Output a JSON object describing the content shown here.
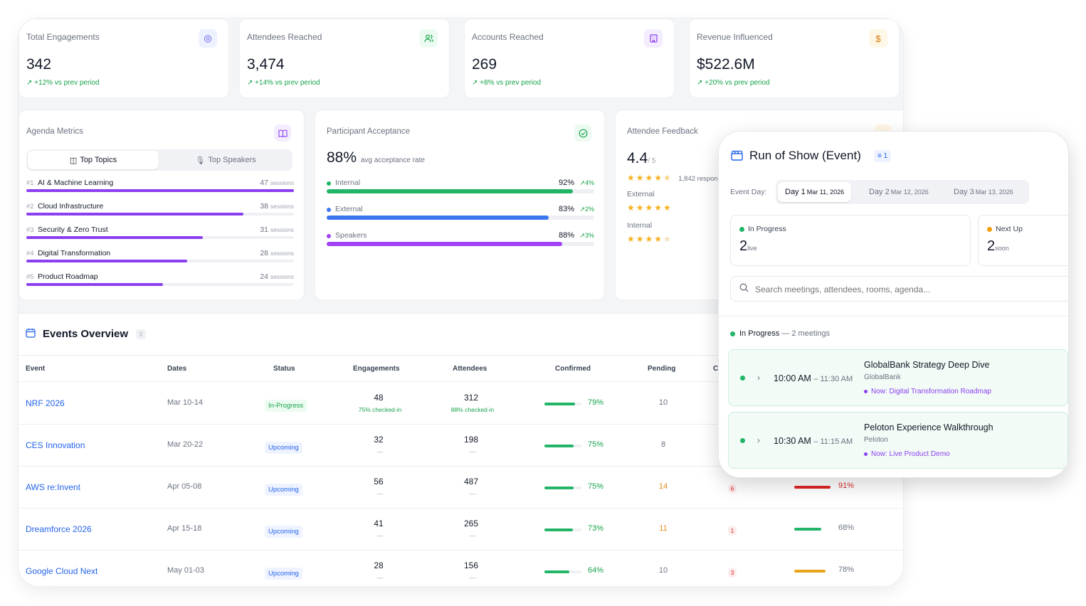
{
  "kpis": [
    {
      "label": "Total Engagements",
      "value": "342",
      "delta": "+12% vs prev period",
      "icon": "target-icon",
      "color": "#4f46e5",
      "bg": "#eef2ff"
    },
    {
      "label": "Attendees Reached",
      "value": "3,474",
      "delta": "+14% vs prev period",
      "icon": "users-icon",
      "color": "#16a34a",
      "bg": "#ecfbf1"
    },
    {
      "label": "Accounts Reached",
      "value": "269",
      "delta": "+8% vs prev period",
      "icon": "building-icon",
      "color": "#8b3ff0",
      "bg": "#f4edff"
    },
    {
      "label": "Revenue Influenced",
      "value": "$522.6M",
      "delta": "+20% vs prev period",
      "icon": "dollar-icon",
      "color": "#d97706",
      "bg": "#fff7e6"
    }
  ],
  "agenda": {
    "title": "Agenda Metrics",
    "tab_topics": "Top Topics",
    "tab_speakers": "Top Speakers",
    "sessions_suffix": "sessions",
    "topics": [
      {
        "rank": "#1",
        "name": "AI & Machine Learning",
        "count": "47",
        "pct": 1.0
      },
      {
        "rank": "#2",
        "name": "Cloud Infrastructure",
        "count": "38",
        "pct": 0.81
      },
      {
        "rank": "#3",
        "name": "Security & Zero Trust",
        "count": "31",
        "pct": 0.66
      },
      {
        "rank": "#4",
        "name": "Digital Transformation",
        "count": "28",
        "pct": 0.6
      },
      {
        "rank": "#5",
        "name": "Product Roadmap",
        "count": "24",
        "pct": 0.51
      }
    ]
  },
  "acceptance": {
    "title": "Participant Acceptance",
    "value": "88%",
    "caption": "avg acceptance rate",
    "rows": [
      {
        "name": "Internal",
        "pct": "92%",
        "trend": "4%",
        "fill": 0.92,
        "color": "#22b567"
      },
      {
        "name": "External",
        "pct": "83%",
        "trend": "2%",
        "fill": 0.83,
        "color": "#3b76ef"
      },
      {
        "name": "Speakers",
        "pct": "88%",
        "trend": "3%",
        "fill": 0.88,
        "color": "#a142f4"
      }
    ]
  },
  "feedback": {
    "title": "Attendee Feedback",
    "value": "4.4",
    "scale": "/ 5",
    "responses": "1,842 responses",
    "rating": 4.4,
    "external_label": "External",
    "external_rating": 4.6,
    "internal_label": "Internal",
    "internal_rating": 4.3
  },
  "events": {
    "title": "Events Overview",
    "columns": [
      "Event",
      "Dates",
      "Status",
      "Engagements",
      "Attendees",
      "Confirmed",
      "Pending",
      "C"
    ],
    "rows": [
      {
        "name": "NRF 2026",
        "dates": "Mar 10-14",
        "status": "In-Progress",
        "engagements": "48",
        "eng_sub": "75% checked-in",
        "attendees": "312",
        "att_sub": "88% checked-in",
        "confirmed": "79%",
        "confirmed_frac": 0.79,
        "pending": "10",
        "pending_color": "#6b7280",
        "cancelled": "",
        "rate": "",
        "rate_frac": 0,
        "rate_color": "#22b567"
      },
      {
        "name": "CES Innovation",
        "dates": "Mar 20-22",
        "status": "Upcoming",
        "engagements": "32",
        "eng_sub": "—",
        "attendees": "198",
        "att_sub": "—",
        "confirmed": "75%",
        "confirmed_frac": 0.75,
        "pending": "8",
        "pending_color": "#6b7280",
        "cancelled": "",
        "rate": "",
        "rate_frac": 0,
        "rate_color": "#22b567"
      },
      {
        "name": "AWS re:Invent",
        "dates": "Apr 05-08",
        "status": "Upcoming",
        "engagements": "56",
        "eng_sub": "—",
        "attendees": "487",
        "att_sub": "—",
        "confirmed": "75%",
        "confirmed_frac": 0.75,
        "pending": "14",
        "pending_color": "#e28a1a",
        "cancelled": "6",
        "rate": "91%",
        "rate_frac": 0.91,
        "rate_color": "#dc2626"
      },
      {
        "name": "Dreamforce 2026",
        "dates": "Apr 15-18",
        "status": "Upcoming",
        "engagements": "41",
        "eng_sub": "—",
        "attendees": "265",
        "att_sub": "—",
        "confirmed": "73%",
        "confirmed_frac": 0.73,
        "pending": "11",
        "pending_color": "#e28a1a",
        "cancelled": "1",
        "rate": "68%",
        "rate_frac": 0.68,
        "rate_color": "#22b567"
      },
      {
        "name": "Google Cloud Next",
        "dates": "May 01-03",
        "status": "Upcoming",
        "engagements": "28",
        "eng_sub": "—",
        "attendees": "156",
        "att_sub": "—",
        "confirmed": "64%",
        "confirmed_frac": 0.64,
        "pending": "10",
        "pending_color": "#6b7280",
        "cancelled": "3",
        "rate": "78%",
        "rate_frac": 0.78,
        "rate_color": "#e8a317"
      }
    ]
  },
  "ros": {
    "title": "Run of Show (Event)",
    "badge": "1",
    "day_label": "Event Day:",
    "days": [
      {
        "day": "Day 1",
        "date": "Mar 11, 2026"
      },
      {
        "day": "Day 2",
        "date": "Mar 12, 2026"
      },
      {
        "day": "Day 3",
        "date": "Mar 13, 2026"
      }
    ],
    "in_progress_label": "In Progress",
    "in_progress_value": "2",
    "in_progress_unit": "live",
    "next_up_label": "Next Up",
    "next_up_value": "2",
    "next_up_unit": "soon",
    "search_placeholder": "Search meetings, attendees, rooms, agenda...",
    "section_label": "In Progress",
    "section_meta": " — 2 meetings",
    "meetings": [
      {
        "time_start": "10:00 AM",
        "time_end": "11:30 AM",
        "title": "GlobalBank Strategy Deep Dive",
        "company": "GlobalBank",
        "now": "Now: Digital Transformation Roadmap"
      },
      {
        "time_start": "10:30 AM",
        "time_end": "11:15 AM",
        "title": "Peloton Experience Walkthrough",
        "company": "Peloton",
        "now": "Now: Live Product Demo"
      }
    ]
  }
}
